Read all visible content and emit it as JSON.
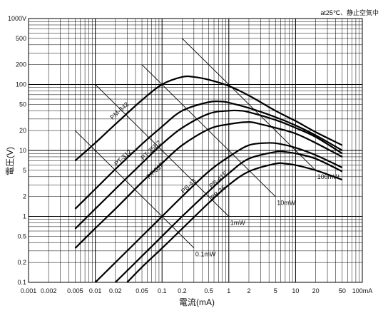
{
  "chart_data": {
    "type": "line",
    "note": "at25℃、静止空気中",
    "xlabel": "電流(mA)",
    "ylabel": "電圧(V)",
    "x_scale": "log",
    "y_scale": "log",
    "xlim": [
      0.001,
      100
    ],
    "ylim": [
      0.1,
      1000
    ],
    "grid": true,
    "x_ticks": [
      0.001,
      0.002,
      0.005,
      0.01,
      0.02,
      0.05,
      0.1,
      0.2,
      0.5,
      1,
      2,
      5,
      10,
      20,
      50,
      100
    ],
    "x_tick_labels": [
      "0.001",
      "0.002",
      "0.005",
      "0.01",
      "0.02",
      "0.05",
      "0.1",
      "0.2",
      "0.5",
      "1",
      "2",
      "5",
      "10",
      "20",
      "50",
      "100mA"
    ],
    "y_ticks": [
      0.1,
      0.2,
      0.5,
      1,
      2,
      5,
      10,
      20,
      50,
      100,
      200,
      500,
      1000
    ],
    "y_tick_labels": [
      "0.1",
      "0.2",
      "0.5",
      "1",
      "2",
      "5",
      "10",
      "20",
      "50",
      "100",
      "200",
      "500",
      "1000V"
    ],
    "series": [
      {
        "name": "PM-342",
        "x": [
          0.005,
          0.01,
          0.02,
          0.05,
          0.1,
          0.2,
          0.3,
          0.5,
          1,
          2,
          5,
          10,
          20,
          50
        ],
        "y": [
          7,
          13,
          25,
          58,
          100,
          130,
          130,
          118,
          95,
          68,
          40,
          28,
          19,
          12
        ]
      },
      {
        "name": "PT-312",
        "x": [
          0.005,
          0.01,
          0.02,
          0.05,
          0.1,
          0.2,
          0.5,
          0.8,
          1,
          2,
          5,
          10,
          20,
          50
        ],
        "y": [
          1.3,
          2.6,
          5.2,
          12.5,
          23,
          40,
          54,
          55,
          53,
          44,
          32,
          24,
          17,
          10
        ]
      },
      {
        "name": "PT-25E2",
        "x": [
          0.005,
          0.01,
          0.02,
          0.05,
          0.1,
          0.2,
          0.5,
          1,
          1.5,
          2,
          5,
          10,
          20,
          50
        ],
        "y": [
          0.65,
          1.3,
          2.6,
          6.4,
          12.5,
          22,
          36,
          40,
          40,
          38,
          29,
          22,
          16,
          9
        ]
      },
      {
        "name": "PT-51F",
        "x": [
          0.005,
          0.01,
          0.02,
          0.05,
          0.1,
          0.2,
          0.5,
          1,
          2,
          3,
          5,
          10,
          20,
          50
        ],
        "y": [
          0.33,
          0.66,
          1.3,
          3.3,
          6.4,
          12,
          21,
          25,
          27,
          25,
          22,
          18,
          13,
          8
        ]
      },
      {
        "name": "PB-43",
        "x": [
          0.01,
          0.02,
          0.05,
          0.1,
          0.2,
          0.5,
          1,
          2,
          4,
          6,
          10,
          20,
          50
        ],
        "y": [
          0.1,
          0.2,
          0.5,
          1.0,
          2.0,
          4.8,
          8,
          12,
          13,
          12.5,
          11,
          8.5,
          5.5
        ]
      },
      {
        "name": "PB-41E",
        "x": [
          0.02,
          0.05,
          0.1,
          0.2,
          0.5,
          1,
          2,
          5,
          7,
          10,
          20,
          50
        ],
        "y": [
          0.1,
          0.25,
          0.5,
          1.0,
          2.4,
          4.5,
          7.5,
          9.5,
          9.5,
          9,
          7.5,
          4.8
        ]
      },
      {
        "name": "PB-36",
        "x": [
          0.03,
          0.05,
          0.1,
          0.2,
          0.5,
          1,
          2,
          5,
          7,
          10,
          20,
          50
        ],
        "y": [
          0.1,
          0.17,
          0.33,
          0.65,
          1.6,
          3.0,
          4.8,
          6.3,
          6.3,
          6.0,
          5.0,
          3.6
        ]
      }
    ],
    "power_lines": [
      {
        "name": "100mW",
        "mw": 100,
        "x": [
          0.2,
          20
        ]
      },
      {
        "name": "10mW",
        "mw": 10,
        "x": [
          0.05,
          5
        ]
      },
      {
        "name": "1mW",
        "mw": 1,
        "x": [
          0.01,
          1
        ]
      },
      {
        "name": "0.1mW",
        "mw": 0.1,
        "x": [
          0.005,
          0.3
        ]
      }
    ]
  }
}
